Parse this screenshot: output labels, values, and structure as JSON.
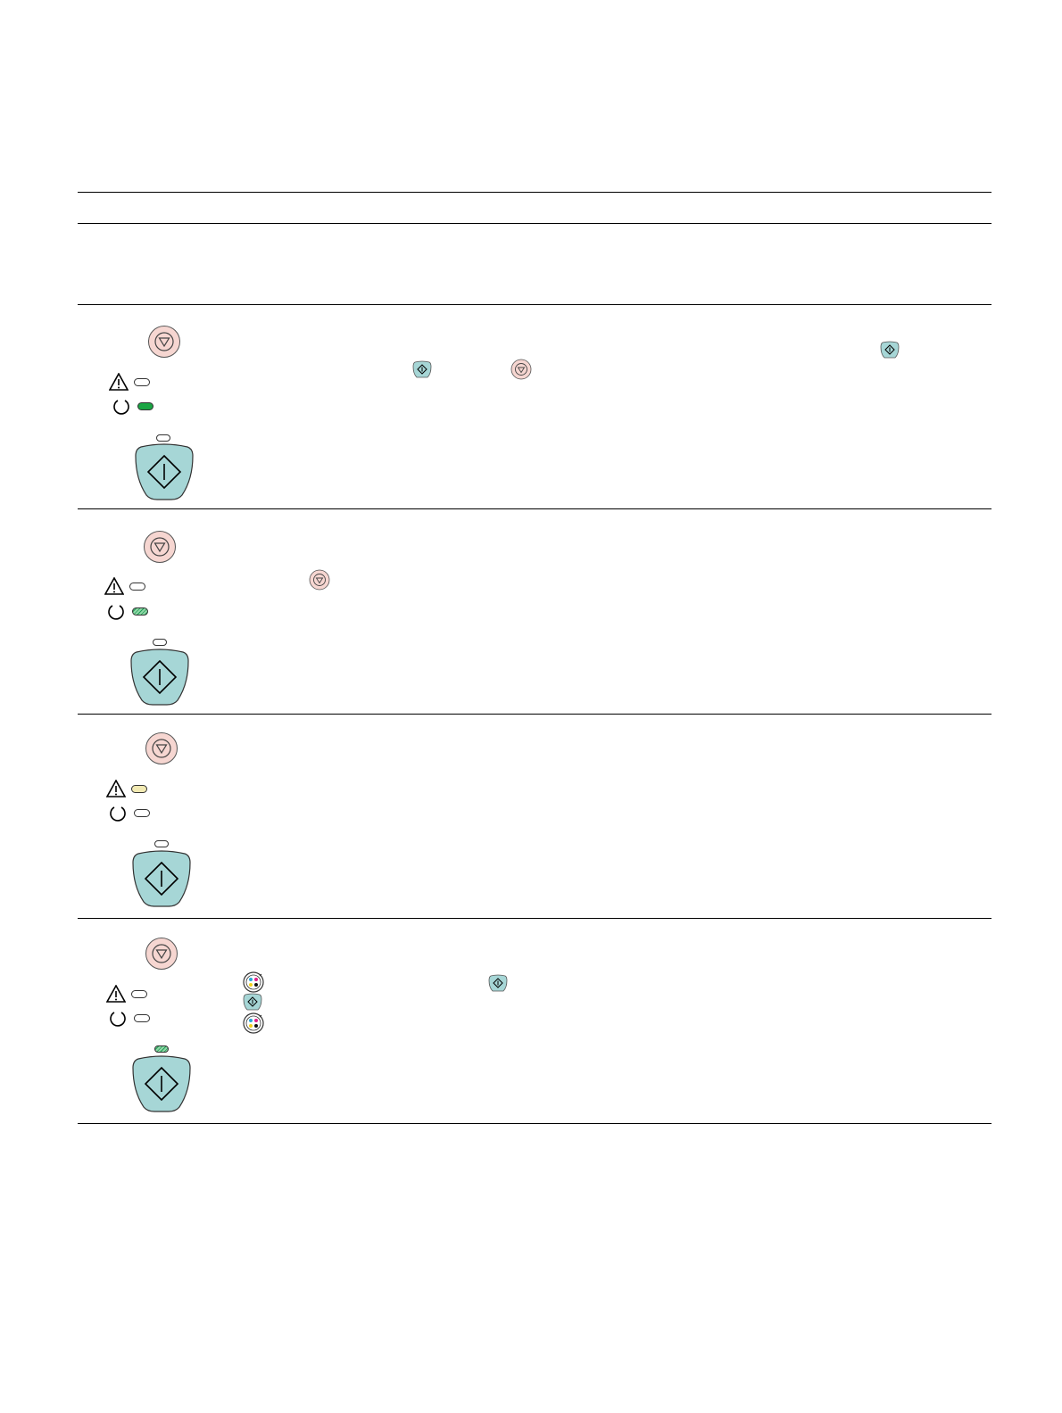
{
  "table": {
    "rows": [
      {
        "id": "row-1",
        "attention_led": "off",
        "power_led": "on",
        "resume_led": "off"
      },
      {
        "id": "row-2",
        "attention_led": "off",
        "power_led": "blinking",
        "resume_led": "off"
      },
      {
        "id": "row-3",
        "attention_led": "on",
        "power_led": "off",
        "resume_led": "off"
      },
      {
        "id": "row-4",
        "attention_led": "off",
        "power_led": "off",
        "resume_led": "blinking"
      }
    ]
  },
  "icons": {
    "cancel": "cancel-button-icon",
    "resume": "resume-button-icon",
    "attention": "attention-icon",
    "power": "power-icon",
    "print_cartridge": "print-cartridge-icon"
  },
  "colors": {
    "cancel_fill": "#f6d6d1",
    "resume_fill": "#a6d6d6",
    "led_green": "#1aa543",
    "led_amber": "#f2eab3"
  }
}
